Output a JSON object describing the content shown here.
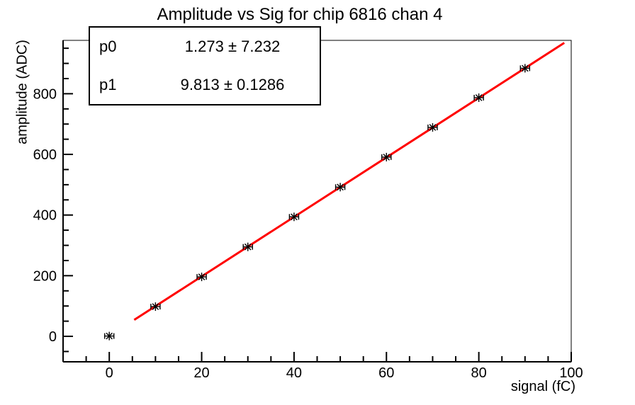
{
  "chart_data": {
    "type": "scatter",
    "title": "Amplitude vs Sig for chip 6816 chan 4",
    "xlabel": "signal (fC)",
    "ylabel": "amplitude (ADC)",
    "x": [
      0,
      10,
      20,
      30,
      40,
      50,
      60,
      70,
      80,
      90
    ],
    "y": [
      1,
      98,
      196,
      295,
      394,
      492,
      591,
      689,
      787,
      884
    ],
    "x_error": 1,
    "marker": "asterisk",
    "marker_color": "#000000",
    "xlim": [
      -10,
      100
    ],
    "ylim": [
      -84,
      976
    ],
    "x_ticks": {
      "majors": [
        0,
        20,
        40,
        60,
        80,
        100
      ],
      "labels": [
        "0",
        "20",
        "40",
        "60",
        "80",
        "100"
      ],
      "minor_step": 5
    },
    "y_ticks": {
      "majors": [
        0,
        200,
        400,
        600,
        800
      ],
      "labels": [
        "0",
        "200",
        "400",
        "600",
        "800"
      ],
      "minor_step": 50
    },
    "grid": false,
    "fit": {
      "p0": 1.273,
      "p0_err": 7.232,
      "p1": 9.813,
      "p1_err": 0.1286,
      "x_start": 5.4,
      "x_end": 98.5,
      "line_color": "#ff0000"
    }
  },
  "stats_box": {
    "rows": [
      {
        "name": "p0",
        "value": "1.273 ± 7.232"
      },
      {
        "name": "p1",
        "value": "9.813 ± 0.1286"
      }
    ]
  },
  "colors": {
    "fit_line": "#ff0000",
    "axis": "#000000",
    "background": "#ffffff"
  }
}
